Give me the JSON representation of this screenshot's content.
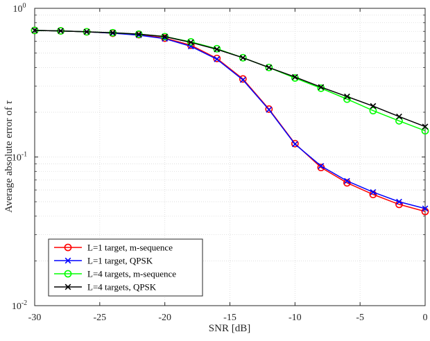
{
  "chart_data": {
    "type": "line",
    "xlabel": "SNR [dB]",
    "ylabel": "Average absolute error of",
    "ylabel_symbol": "τ",
    "xlim": [
      -30,
      0
    ],
    "ylim": [
      0.01,
      1
    ],
    "yscale": "log",
    "grid": true,
    "legend_position": "bottom-left",
    "x_ticks": [
      {
        "value": -30,
        "label": "-30"
      },
      {
        "value": -25,
        "label": "-25"
      },
      {
        "value": -20,
        "label": "-20"
      },
      {
        "value": -15,
        "label": "-15"
      },
      {
        "value": -10,
        "label": "-10"
      },
      {
        "value": -5,
        "label": "-5"
      },
      {
        "value": 0,
        "label": "0"
      }
    ],
    "y_ticks": [
      {
        "value": 1,
        "base": "10",
        "exp": "0"
      },
      {
        "value": 0.1,
        "base": "10",
        "exp": "-1"
      },
      {
        "value": 0.01,
        "base": "10",
        "exp": "-2"
      }
    ],
    "x": [
      -30,
      -28,
      -26,
      -24,
      -22,
      -20,
      -18,
      -16,
      -14,
      -12,
      -10,
      -8,
      -6,
      -4,
      -2,
      0
    ],
    "series": [
      {
        "name": "L=1 target, m-sequence",
        "color": "#ff0000",
        "marker": "circle",
        "values": [
          0.71,
          0.705,
          0.695,
          0.68,
          0.665,
          0.63,
          0.565,
          0.46,
          0.335,
          0.21,
          0.123,
          0.085,
          0.067,
          0.056,
          0.048,
          0.043
        ]
      },
      {
        "name": "L=1 target, QPSK",
        "color": "#0000ff",
        "marker": "x",
        "values": [
          0.71,
          0.705,
          0.695,
          0.68,
          0.66,
          0.625,
          0.555,
          0.455,
          0.33,
          0.208,
          0.122,
          0.087,
          0.069,
          0.058,
          0.05,
          0.045
        ]
      },
      {
        "name": "L=4 targets, m-sequence",
        "color": "#00ff00",
        "marker": "circle",
        "values": [
          0.71,
          0.705,
          0.695,
          0.685,
          0.67,
          0.645,
          0.595,
          0.535,
          0.465,
          0.4,
          0.34,
          0.29,
          0.245,
          0.205,
          0.175,
          0.15
        ]
      },
      {
        "name": "L=4 targets, QPSK",
        "color": "#000000",
        "marker": "x",
        "values": [
          0.71,
          0.705,
          0.695,
          0.685,
          0.67,
          0.645,
          0.59,
          0.53,
          0.465,
          0.4,
          0.345,
          0.295,
          0.255,
          0.22,
          0.187,
          0.16
        ]
      }
    ]
  }
}
